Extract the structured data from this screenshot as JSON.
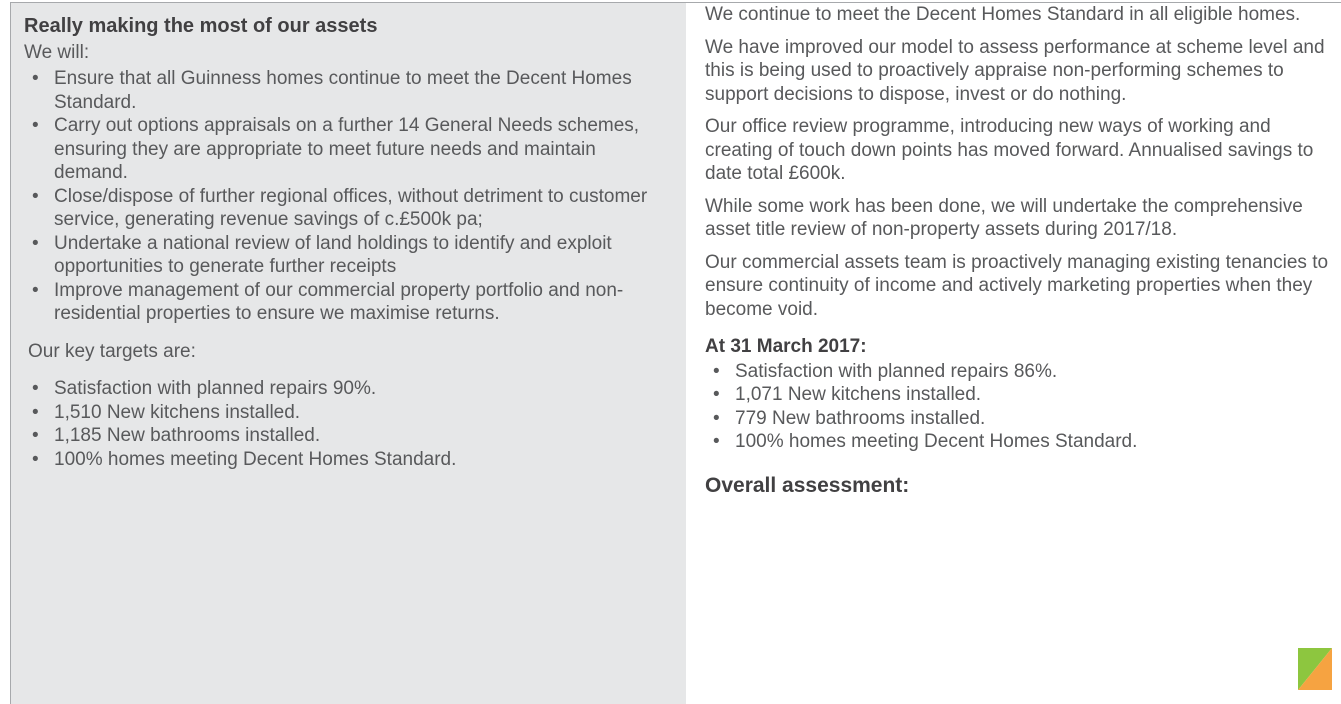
{
  "left": {
    "heading": "Really making the most of our assets",
    "intro": "We will:",
    "bullets": [
      "Ensure that all Guinness homes continue to meet the Decent Homes Standard.",
      "Carry out options appraisals on a further 14 General Needs schemes, ensuring they are appropriate to meet future needs and maintain demand.",
      "Close/dispose of further regional offices, without detriment to customer service, generating revenue savings of c.£500k pa;",
      "Undertake a national review of land holdings to identify and exploit opportunities to generate further receipts",
      "Improve management of our commercial property portfolio and non-residential properties to ensure we maximise returns."
    ],
    "targets_intro": "Our key targets are:",
    "targets": [
      "Satisfaction with planned repairs 90%.",
      "1,510 New kitchens installed.",
      "1,185 New bathrooms installed.",
      "100% homes meeting Decent Homes Standard."
    ]
  },
  "right": {
    "paragraphs": [
      "We continue to meet the Decent Homes Standard in all eligible homes.",
      "We have improved our model to assess performance at scheme level and this is being used to proactively appraise non-performing schemes to support decisions to dispose, invest or do nothing.",
      "Our office review programme, introducing new ways of working and creating of touch down points has moved forward. Annualised savings to date total £600k.",
      "While some work has been done, we will undertake the comprehensive asset title review of non-property assets during 2017/18.",
      "Our commercial assets team is proactively managing existing tenancies to ensure continuity of income and actively marketing properties when they become void."
    ],
    "status_heading": "At 31 March 2017:",
    "status": [
      "Satisfaction with planned repairs 86%.",
      "1,071 New kitchens installed.",
      "779 New bathrooms installed.",
      "100% homes meeting Decent Homes Standard."
    ],
    "assessment_heading": "Overall assessment:"
  }
}
